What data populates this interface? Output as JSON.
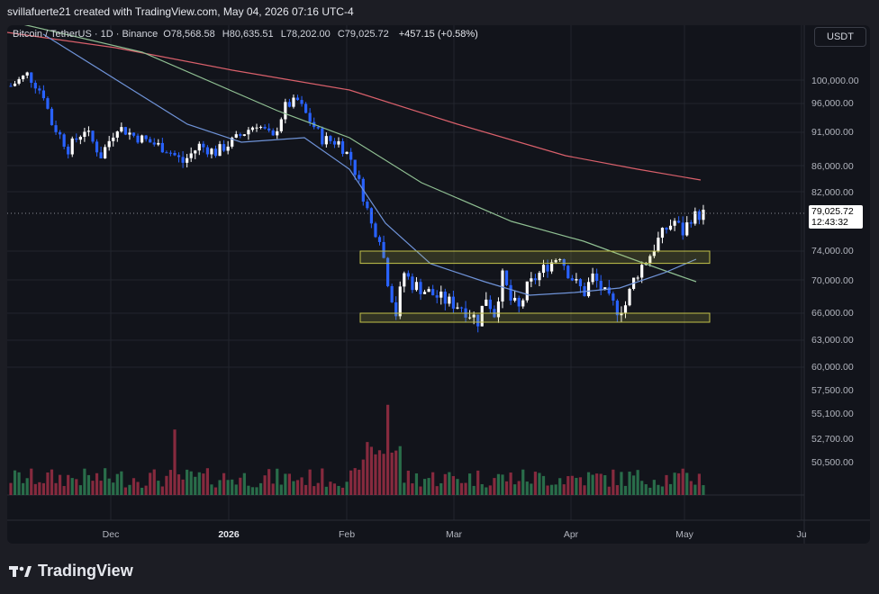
{
  "header": {
    "text": "svillafuerte21 created with TradingView.com, May 04, 2026 07:16 UTC-4"
  },
  "legend": {
    "symbol": "Bitcoin / TetherUS · 1D · Binance",
    "open": "O78,568.58",
    "high": "H80,635.51",
    "low": "L78,202.00",
    "close": "C79,025.72",
    "change": "+457.15 (+0.58%)"
  },
  "currency": "USDT",
  "price_axis": {
    "labels": [
      "100,000.00",
      "96,000.00",
      "91,000.00",
      "86,000.00",
      "82,000.00",
      "74,000.00",
      "70,000.00",
      "66,000.00",
      "63,000.00",
      "60,000.00",
      "57,500.00",
      "55,100.00",
      "52,700.00",
      "50,500.00"
    ],
    "current_price": "79,025.72",
    "countdown": "12:43:32"
  },
  "time_axis": {
    "labels": [
      "Dec",
      "2026",
      "Feb",
      "Mar",
      "Apr",
      "May",
      "Ju"
    ]
  },
  "zones": [
    {
      "name": "resistance-zone",
      "from": 72300,
      "to": 74000
    },
    {
      "name": "support-zone",
      "from": 65000,
      "to": 66000
    }
  ],
  "colors": {
    "up": "#ffffff",
    "down": "#2962ff",
    "vol_up": "#2e7d52",
    "vol_down": "#9b2e44",
    "ma_short": "#6f93d8",
    "ma_mid": "#8fbf92",
    "ma_long": "#d9606b",
    "zone_border": "#c2c24a"
  },
  "brand": "TradingView"
}
